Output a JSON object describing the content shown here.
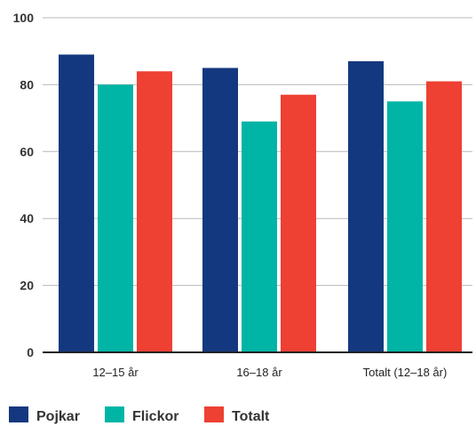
{
  "chart_data": {
    "type": "bar",
    "categories": [
      "12–15 år",
      "16–18 år",
      "Totalt (12–18 år)"
    ],
    "series": [
      {
        "name": "Pojkar",
        "values": [
          89,
          85,
          87
        ],
        "color": "#14387f"
      },
      {
        "name": "Flickor",
        "values": [
          80,
          69,
          75
        ],
        "color": "#00b5a5"
      },
      {
        "name": "Totalt",
        "values": [
          84,
          77,
          81
        ],
        "color": "#ee4033"
      }
    ],
    "yticks": [
      "0",
      "20",
      "40",
      "60",
      "80",
      "100"
    ],
    "ylim": [
      0,
      100
    ],
    "grid": true,
    "legend_position": "bottom-left"
  }
}
